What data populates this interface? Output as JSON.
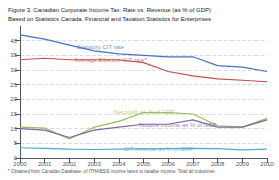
{
  "chart_data": {
    "type": "line",
    "title": "Figure 3. Canadian Corporate Income Tax: Rate vs. Revenue (as % of GDP)",
    "subtitle": "Based on Statistics Canada, Financial and Taxation Statistics for Enterprises",
    "footnote": "* Obtained from Canadan Database, of ITHABSIS income taxes to taxable income, Total all industries.",
    "x": [
      2000,
      2001,
      2002,
      2003,
      2004,
      2005,
      2006,
      2007,
      2008,
      2009,
      2010
    ],
    "series": [
      {
        "color": "#4472C4",
        "values": [
          42,
          40.5,
          38.5,
          36.5,
          35.5,
          35,
          34.5,
          34.5,
          31.5,
          31,
          29.5
        ]
      },
      {
        "color": "#C0504D",
        "values": [
          33.5,
          34.0,
          33.5,
          33.5,
          33.5,
          32.5,
          29.5,
          28.0,
          27.0,
          26.5,
          26.0
        ]
      },
      {
        "color": "#9BBB59",
        "values": [
          10.5,
          10.2,
          6.5,
          10.5,
          12.5,
          15.5,
          15.5,
          15.0,
          11.0,
          10.5,
          13.5
        ]
      },
      {
        "color": "#8064A2",
        "values": [
          10.0,
          9.5,
          7.0,
          9.5,
          10.5,
          11.5,
          11.5,
          13.0,
          10.5,
          10.5,
          13.0
        ]
      },
      {
        "color": "#4BACC6",
        "values": [
          3.5,
          3.3,
          3.0,
          2.9,
          3.0,
          3.1,
          3.2,
          3.3,
          3.2,
          2.8,
          3.0
        ]
      }
    ],
    "annotations": [
      {
        "text": "Statutory CIT rate",
        "x": 2002.3,
        "y": 36.8,
        "color": "#4472C4"
      },
      {
        "text": "Average Effective CIT rate*",
        "x": 2002.2,
        "y": 32.5,
        "color": "#C0504D"
      },
      {
        "text": "Net profit as % of GDP",
        "x": 2003.8,
        "y": 14.8,
        "color": "#9BBB59"
      },
      {
        "text": "Taxable income as % of GDP",
        "x": 2004.8,
        "y": 10.2,
        "color": "#8064A2"
      },
      {
        "text": "CIT revenue as % of GDP",
        "x": 2004.2,
        "y": 2.0,
        "color": "#4BACC6"
      }
    ],
    "xlim": [
      2000,
      2010
    ],
    "xticks": [
      2000,
      2001,
      2002,
      2003,
      2004,
      2005,
      2006,
      2007,
      2008,
      2009,
      2010
    ],
    "ylim": [
      0,
      45
    ],
    "yticks": [
      0,
      5,
      10,
      15,
      20,
      25,
      30,
      35,
      40
    ],
    "grid": true
  }
}
